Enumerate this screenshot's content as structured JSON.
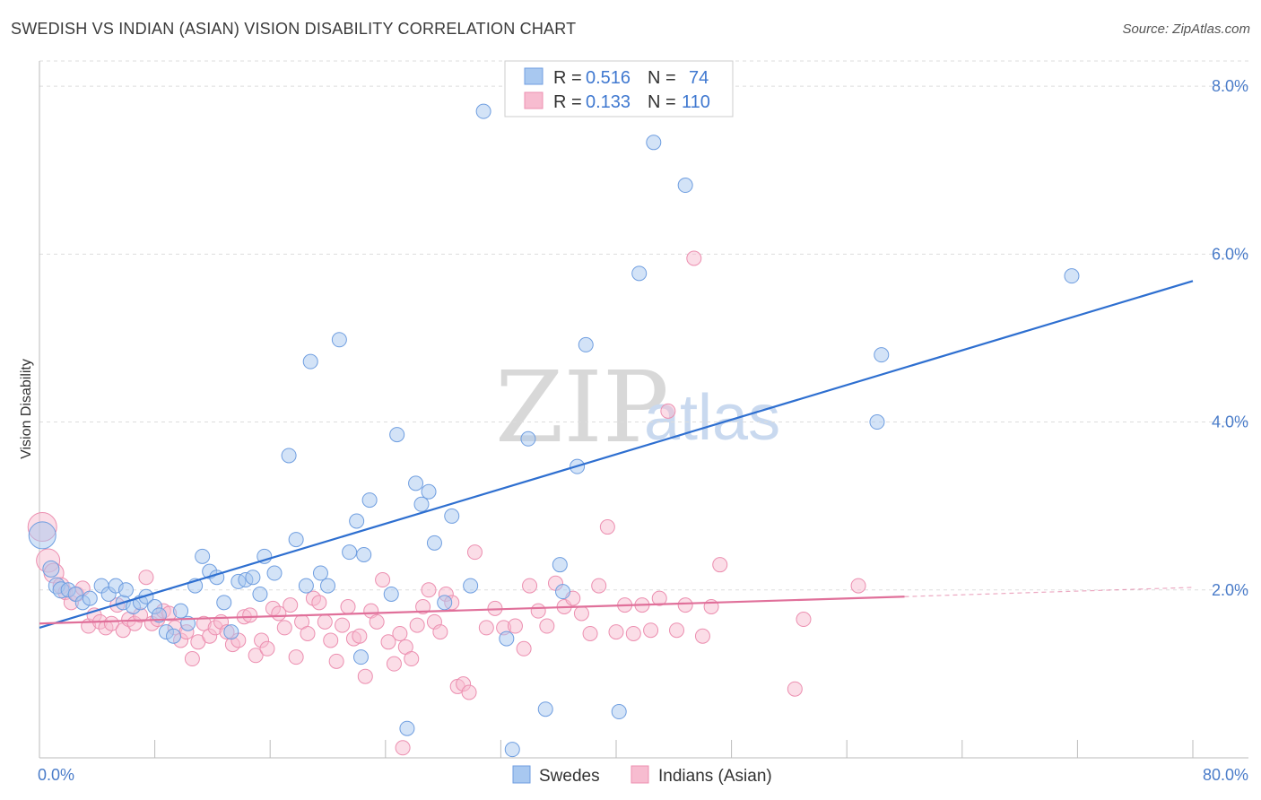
{
  "header": {
    "title": "SWEDISH VS INDIAN (ASIAN) VISION DISABILITY CORRELATION CHART",
    "source": "Source: ZipAtlas.com"
  },
  "watermark": {
    "zip": "ZIP",
    "atlas": "atlas"
  },
  "legend_box": {
    "rows": [
      {
        "r_label": "R =",
        "r_value": "0.516",
        "n_label": "N =",
        "n_value": "74"
      },
      {
        "r_label": "R =",
        "r_value": "0.133",
        "n_label": "N =",
        "n_value": "110"
      }
    ]
  },
  "bottom_legend": {
    "swedes": "Swedes",
    "indians": "Indians (Asian)"
  },
  "colors": {
    "swedes_fill": "#a8c8f0",
    "swedes_stroke": "#6f9ee0",
    "swedes_line": "#2e6fd0",
    "indians_fill": "#f7bcd0",
    "indians_stroke": "#ec8fb0",
    "indians_line": "#e0709a",
    "tick_text": "#4a7cc9"
  },
  "chart_data": {
    "type": "scatter",
    "title": "SWEDISH VS INDIAN (ASIAN) VISION DISABILITY CORRELATION CHART",
    "xlabel": "",
    "ylabel": "Vision Disability",
    "xlim": [
      0,
      80
    ],
    "ylim": [
      0,
      8.3
    ],
    "x_tick_labels": [
      "0.0%",
      "80.0%"
    ],
    "y_ticks": [
      2,
      4,
      6,
      8
    ],
    "y_tick_labels": [
      "2.0%",
      "4.0%",
      "6.0%",
      "8.0%"
    ],
    "grid": true,
    "legend_position": "top-center",
    "series": [
      {
        "name": "Swedes",
        "r": 0.516,
        "n": 74,
        "trend": {
          "x": [
            0,
            80
          ],
          "y": [
            1.55,
            5.68
          ]
        },
        "points": [
          [
            0.2,
            2.65,
            15
          ],
          [
            0.8,
            2.25,
            9
          ],
          [
            1.2,
            2.05,
            9
          ],
          [
            1.5,
            2.0,
            9
          ],
          [
            2.0,
            2.0,
            8
          ],
          [
            2.5,
            1.95,
            8
          ],
          [
            3.0,
            1.85,
            8
          ],
          [
            3.5,
            1.9,
            8
          ],
          [
            4.3,
            2.05,
            8
          ],
          [
            4.8,
            1.95,
            8
          ],
          [
            5.3,
            2.05,
            8
          ],
          [
            5.8,
            1.85,
            8
          ],
          [
            6.0,
            2.0,
            8
          ],
          [
            6.5,
            1.8,
            8
          ],
          [
            7.0,
            1.85,
            8
          ],
          [
            7.4,
            1.92,
            8
          ],
          [
            8.0,
            1.8,
            8
          ],
          [
            8.3,
            1.7,
            8
          ],
          [
            8.8,
            1.5,
            8
          ],
          [
            9.3,
            1.45,
            8
          ],
          [
            9.8,
            1.75,
            8
          ],
          [
            10.3,
            1.6,
            8
          ],
          [
            10.8,
            2.05,
            8
          ],
          [
            11.3,
            2.4,
            8
          ],
          [
            11.8,
            2.22,
            8
          ],
          [
            12.3,
            2.15,
            8
          ],
          [
            12.8,
            1.85,
            8
          ],
          [
            13.3,
            1.5,
            8
          ],
          [
            13.8,
            2.1,
            8
          ],
          [
            14.3,
            2.12,
            8
          ],
          [
            14.8,
            2.15,
            8
          ],
          [
            15.3,
            1.95,
            8
          ],
          [
            15.6,
            2.4,
            8
          ],
          [
            16.3,
            2.2,
            8
          ],
          [
            17.3,
            3.6,
            8
          ],
          [
            17.8,
            2.6,
            8
          ],
          [
            18.5,
            2.05,
            8
          ],
          [
            18.8,
            4.72,
            8
          ],
          [
            19.5,
            2.2,
            8
          ],
          [
            20.0,
            2.05,
            8
          ],
          [
            20.8,
            4.98,
            8
          ],
          [
            21.5,
            2.45,
            8
          ],
          [
            22.0,
            2.82,
            8
          ],
          [
            22.3,
            1.2,
            8
          ],
          [
            22.5,
            2.42,
            8
          ],
          [
            22.9,
            3.07,
            8
          ],
          [
            24.4,
            1.95,
            8
          ],
          [
            24.8,
            3.85,
            8
          ],
          [
            25.5,
            0.35,
            8
          ],
          [
            26.1,
            3.27,
            8
          ],
          [
            26.5,
            3.02,
            8
          ],
          [
            27.0,
            3.17,
            8
          ],
          [
            27.4,
            2.56,
            8
          ],
          [
            28.1,
            1.85,
            8
          ],
          [
            28.6,
            2.88,
            8
          ],
          [
            29.9,
            2.05,
            8
          ],
          [
            30.8,
            7.7,
            8
          ],
          [
            32.4,
            1.42,
            8
          ],
          [
            32.8,
            0.1,
            8
          ],
          [
            33.9,
            3.8,
            8
          ],
          [
            35.1,
            0.58,
            8
          ],
          [
            36.1,
            2.3,
            8
          ],
          [
            36.3,
            1.98,
            8
          ],
          [
            37.3,
            3.47,
            8
          ],
          [
            37.9,
            4.92,
            8
          ],
          [
            40.2,
            0.55,
            8
          ],
          [
            41.6,
            5.77,
            8
          ],
          [
            42.6,
            7.33,
            8
          ],
          [
            44.8,
            6.82,
            8
          ],
          [
            58.1,
            4.0,
            8
          ],
          [
            58.4,
            4.8,
            8
          ],
          [
            71.6,
            5.74,
            8
          ]
        ]
      },
      {
        "name": "Indians (Asian)",
        "r": 0.133,
        "n": 110,
        "trend": {
          "x": [
            0,
            60
          ],
          "y": [
            1.6,
            1.92
          ]
        },
        "trend_dashed": {
          "x": [
            60,
            80
          ],
          "y": [
            1.92,
            2.03
          ]
        },
        "points": [
          [
            0.2,
            2.75,
            16
          ],
          [
            0.6,
            2.35,
            13
          ],
          [
            1.0,
            2.2,
            11
          ],
          [
            1.5,
            2.05,
            9
          ],
          [
            1.8,
            1.97,
            8
          ],
          [
            2.2,
            1.85,
            8
          ],
          [
            2.6,
            1.95,
            8
          ],
          [
            3.0,
            2.02,
            8
          ],
          [
            3.4,
            1.57,
            8
          ],
          [
            3.8,
            1.7,
            8
          ],
          [
            4.2,
            1.62,
            8
          ],
          [
            4.6,
            1.55,
            8
          ],
          [
            5.0,
            1.6,
            8
          ],
          [
            5.4,
            1.82,
            8
          ],
          [
            5.8,
            1.52,
            8
          ],
          [
            6.2,
            1.65,
            8
          ],
          [
            6.6,
            1.6,
            8
          ],
          [
            7.0,
            1.7,
            8
          ],
          [
            7.4,
            2.15,
            8
          ],
          [
            7.8,
            1.6,
            8
          ],
          [
            8.2,
            1.65,
            8
          ],
          [
            8.6,
            1.75,
            8
          ],
          [
            9.0,
            1.72,
            8
          ],
          [
            9.4,
            1.55,
            8
          ],
          [
            9.8,
            1.4,
            8
          ],
          [
            10.2,
            1.5,
            8
          ],
          [
            10.6,
            1.18,
            8
          ],
          [
            11.0,
            1.38,
            8
          ],
          [
            11.4,
            1.6,
            8
          ],
          [
            11.8,
            1.45,
            8
          ],
          [
            12.2,
            1.55,
            8
          ],
          [
            12.6,
            1.62,
            8
          ],
          [
            13.0,
            1.5,
            8
          ],
          [
            13.4,
            1.35,
            8
          ],
          [
            13.8,
            1.4,
            8
          ],
          [
            14.2,
            1.68,
            8
          ],
          [
            14.6,
            1.7,
            8
          ],
          [
            15.0,
            1.22,
            8
          ],
          [
            15.4,
            1.4,
            8
          ],
          [
            15.8,
            1.3,
            8
          ],
          [
            16.2,
            1.78,
            8
          ],
          [
            16.6,
            1.72,
            8
          ],
          [
            17.0,
            1.55,
            8
          ],
          [
            17.4,
            1.82,
            8
          ],
          [
            17.8,
            1.2,
            8
          ],
          [
            18.2,
            1.62,
            8
          ],
          [
            18.6,
            1.48,
            8
          ],
          [
            19.0,
            1.9,
            8
          ],
          [
            19.4,
            1.85,
            8
          ],
          [
            19.8,
            1.62,
            8
          ],
          [
            20.2,
            1.4,
            8
          ],
          [
            20.6,
            1.15,
            8
          ],
          [
            21.0,
            1.58,
            8
          ],
          [
            21.4,
            1.8,
            8
          ],
          [
            21.8,
            1.42,
            8
          ],
          [
            22.2,
            1.45,
            8
          ],
          [
            22.6,
            0.97,
            8
          ],
          [
            23.0,
            1.75,
            8
          ],
          [
            23.4,
            1.62,
            8
          ],
          [
            23.8,
            2.12,
            8
          ],
          [
            24.2,
            1.38,
            8
          ],
          [
            24.6,
            1.12,
            8
          ],
          [
            25.0,
            1.48,
            8
          ],
          [
            25.4,
            1.32,
            8
          ],
          [
            25.8,
            1.18,
            8
          ],
          [
            26.2,
            1.58,
            8
          ],
          [
            26.6,
            1.8,
            8
          ],
          [
            27.0,
            2.0,
            8
          ],
          [
            27.4,
            1.62,
            8
          ],
          [
            27.8,
            1.5,
            8
          ],
          [
            28.2,
            1.95,
            8
          ],
          [
            28.6,
            1.85,
            8
          ],
          [
            29.0,
            0.85,
            8
          ],
          [
            29.4,
            0.88,
            8
          ],
          [
            29.8,
            0.78,
            8
          ],
          [
            30.2,
            2.45,
            8
          ],
          [
            31.0,
            1.55,
            8
          ],
          [
            31.6,
            1.78,
            8
          ],
          [
            32.2,
            1.55,
            8
          ],
          [
            33.0,
            1.57,
            8
          ],
          [
            33.6,
            1.3,
            8
          ],
          [
            34.0,
            2.05,
            8
          ],
          [
            34.6,
            1.75,
            8
          ],
          [
            35.2,
            1.57,
            8
          ],
          [
            35.8,
            2.08,
            8
          ],
          [
            36.4,
            1.8,
            8
          ],
          [
            37.0,
            1.9,
            8
          ],
          [
            37.6,
            1.72,
            8
          ],
          [
            38.2,
            1.48,
            8
          ],
          [
            38.8,
            2.05,
            8
          ],
          [
            39.4,
            2.75,
            8
          ],
          [
            40.0,
            1.5,
            8
          ],
          [
            40.6,
            1.82,
            8
          ],
          [
            41.2,
            1.48,
            8
          ],
          [
            41.8,
            1.82,
            8
          ],
          [
            42.4,
            1.52,
            8
          ],
          [
            43.0,
            1.9,
            8
          ],
          [
            43.6,
            4.13,
            8
          ],
          [
            44.2,
            1.52,
            8
          ],
          [
            44.8,
            1.82,
            8
          ],
          [
            45.4,
            5.95,
            8
          ],
          [
            46.0,
            1.45,
            8
          ],
          [
            46.6,
            1.8,
            8
          ],
          [
            47.2,
            2.3,
            8
          ],
          [
            52.4,
            0.82,
            8
          ],
          [
            53.0,
            1.65,
            8
          ],
          [
            56.8,
            2.05,
            8
          ],
          [
            25.2,
            0.12,
            8
          ]
        ]
      }
    ]
  }
}
